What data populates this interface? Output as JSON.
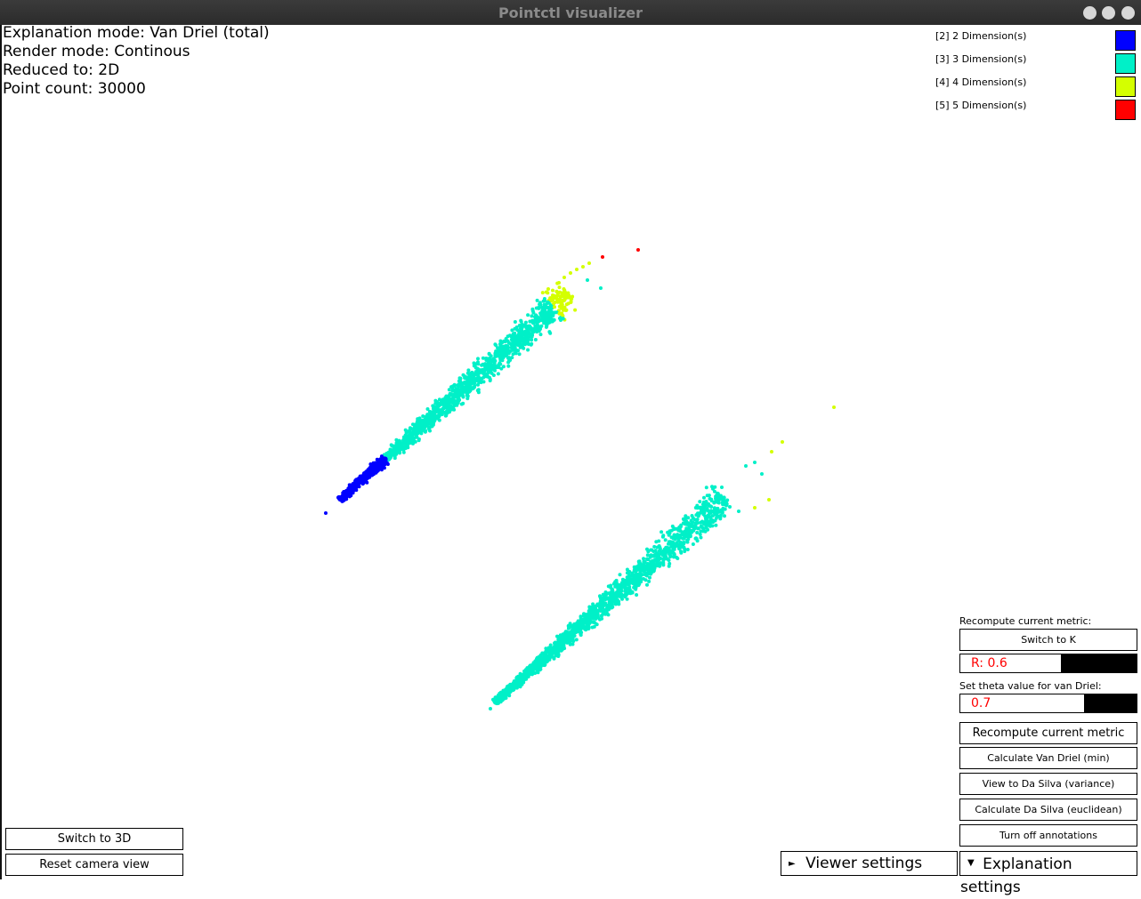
{
  "window": {
    "title": "Pointctl visualizer"
  },
  "info": {
    "explanation_mode": "Explanation mode: Van Driel (total)",
    "render_mode": "Render mode: Continous",
    "reduced_to": "Reduced to: 2D",
    "point_count": "Point count: 30000"
  },
  "legend": [
    {
      "label": "[2] 2 Dimension(s)",
      "color": "#0000ff"
    },
    {
      "label": "[3] 3 Dimension(s)",
      "color": "#00f0c8"
    },
    {
      "label": "[4] 4 Dimension(s)",
      "color": "#d4ff00"
    },
    {
      "label": "[5] 5 Dimension(s)",
      "color": "#ff0000"
    }
  ],
  "panel": {
    "recompute_label": "Recompute current metric:",
    "switch_to_k": "Switch to K",
    "r_value": "R: 0.6",
    "r_level": 0.6,
    "theta_label": "Set theta value for van Driel:",
    "theta_value": "0.7",
    "theta_level": 0.7,
    "recompute_button": "Recompute current metric",
    "calc_van_driel_min": "Calculate Van Driel (min)",
    "view_da_silva_variance": "View to Da Silva (variance)",
    "calc_da_silva_euclidean": "Calculate Da Silva (euclidean)",
    "turn_off_annotations": "Turn off annotations"
  },
  "bottom_left": {
    "switch_3d": "Switch to 3D",
    "reset_camera": "Reset camera view"
  },
  "bottom_tabs": {
    "viewer_settings": "Viewer settings",
    "viewer_arrow": "►",
    "explanation_settings": "Explanation settings",
    "explanation_arrow": "▼"
  },
  "colors": {
    "dim2": "#0000ff",
    "dim3": "#00f0c8",
    "dim4": "#d4ff00",
    "dim5": "#ff0000"
  }
}
